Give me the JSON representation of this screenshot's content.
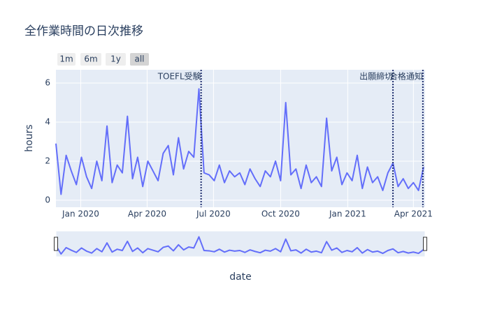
{
  "chart_data": {
    "type": "line",
    "title": "全作業時間の日次推移",
    "x_label": "date",
    "y_label": "hours",
    "buttons": [
      "1m",
      "6m",
      "1y",
      "all"
    ],
    "active_button": 3,
    "x": [
      "2019-11-28",
      "2019-12-05",
      "2019-12-12",
      "2019-12-19",
      "2019-12-26",
      "2020-01-02",
      "2020-01-09",
      "2020-01-16",
      "2020-01-23",
      "2020-01-30",
      "2020-02-06",
      "2020-02-13",
      "2020-02-20",
      "2020-02-27",
      "2020-03-05",
      "2020-03-12",
      "2020-03-19",
      "2020-03-26",
      "2020-04-02",
      "2020-04-09",
      "2020-04-16",
      "2020-04-23",
      "2020-04-30",
      "2020-05-07",
      "2020-05-14",
      "2020-05-21",
      "2020-05-28",
      "2020-06-04",
      "2020-06-11",
      "2020-06-18",
      "2020-06-25",
      "2020-07-02",
      "2020-07-09",
      "2020-07-16",
      "2020-07-23",
      "2020-07-30",
      "2020-08-06",
      "2020-08-13",
      "2020-08-20",
      "2020-08-27",
      "2020-09-03",
      "2020-09-10",
      "2020-09-17",
      "2020-09-24",
      "2020-10-01",
      "2020-10-08",
      "2020-10-15",
      "2020-10-22",
      "2020-10-29",
      "2020-11-05",
      "2020-11-12",
      "2020-11-19",
      "2020-11-26",
      "2020-12-03",
      "2020-12-10",
      "2020-12-17",
      "2020-12-24",
      "2020-12-31",
      "2021-01-07",
      "2021-01-14",
      "2021-01-21",
      "2021-01-28",
      "2021-02-04",
      "2021-02-11",
      "2021-02-18",
      "2021-02-25",
      "2021-03-04",
      "2021-03-11",
      "2021-03-18",
      "2021-03-25",
      "2021-04-01",
      "2021-04-08",
      "2021-04-15"
    ],
    "series": [
      {
        "color": "#636efa",
        "values": [
          2.9,
          0.3,
          2.3,
          1.5,
          0.8,
          2.2,
          1.2,
          0.6,
          2.0,
          1.0,
          3.8,
          0.9,
          1.8,
          1.4,
          4.3,
          1.1,
          2.2,
          0.7,
          2.0,
          1.5,
          1.0,
          2.4,
          2.8,
          1.3,
          3.2,
          1.6,
          2.5,
          2.2,
          5.7,
          1.4,
          1.3,
          1.0,
          1.8,
          0.9,
          1.5,
          1.2,
          1.4,
          0.8,
          1.6,
          1.1,
          0.7,
          1.5,
          1.2,
          2.0,
          1.0,
          5.0,
          1.3,
          1.6,
          0.6,
          1.8,
          0.9,
          1.2,
          0.7,
          4.2,
          1.5,
          2.2,
          0.8,
          1.4,
          1.0,
          2.3,
          0.6,
          1.7,
          0.9,
          1.2,
          0.5,
          1.4,
          1.9,
          0.7,
          1.1,
          0.6,
          0.9,
          0.5,
          1.7
        ]
      }
    ],
    "xlim": [
      "2019-11-28",
      "2021-04-17"
    ],
    "xticks": [
      {
        "value": "2020-01-01",
        "label": "Jan 2020"
      },
      {
        "value": "2020-04-01",
        "label": "Apr 2020"
      },
      {
        "value": "2020-07-01",
        "label": "Jul 2020"
      },
      {
        "value": "2020-10-01",
        "label": "Oct 2020"
      },
      {
        "value": "2021-01-01",
        "label": "Jan 2021"
      },
      {
        "value": "2021-04-01",
        "label": "Apr 2021"
      }
    ],
    "ylim": [
      -0.36,
      6.68
    ],
    "yticks": [
      0,
      2,
      4,
      6
    ],
    "grid": true,
    "annotations": [
      {
        "x": "2020-06-14",
        "text": "TOEFL受験"
      },
      {
        "x": "2021-03-04",
        "text": "出願締切"
      },
      {
        "x": "2021-04-14",
        "text": "合格通知"
      }
    ],
    "range_slider": true
  }
}
